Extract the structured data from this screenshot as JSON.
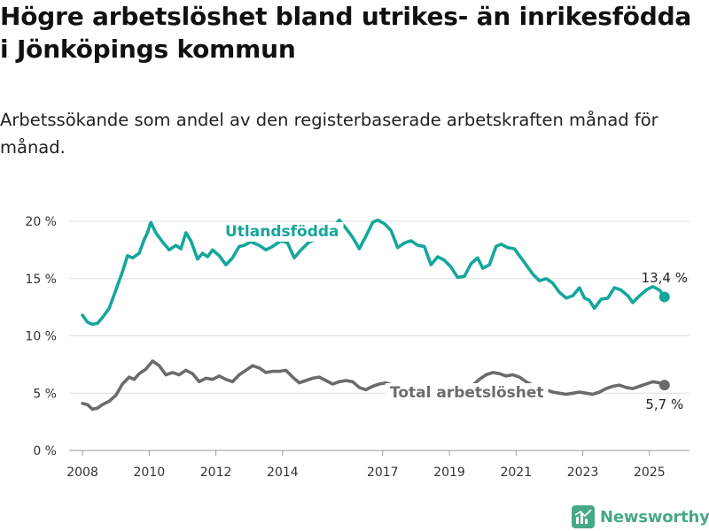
{
  "title": "Högre arbetslöshet bland utrikes- än inrikesfödda i Jönköpings kommun",
  "subtitle": "Arbetssökande som andel av den registerbaserade arbetskraften månad för månad.",
  "brand": {
    "name": "Newsworthy",
    "icon": "newsworthy-logo-icon",
    "color": "#47a889"
  },
  "chart_data": {
    "type": "line",
    "x_unit": "year",
    "xlim": [
      2007.6,
      2026.2
    ],
    "x_ticks": [
      2008,
      2010,
      2012,
      2014,
      2017,
      2019,
      2021,
      2023,
      2025
    ],
    "x_tick_labels": [
      "2008",
      "2010",
      "2012",
      "2014",
      "2017",
      "2019",
      "2021",
      "2023",
      "2025"
    ],
    "ylim": [
      0,
      20
    ],
    "y_ticks": [
      0,
      5,
      10,
      15,
      20
    ],
    "y_tick_labels": [
      "0 %",
      "5 %",
      "10 %",
      "15 %",
      "20 %"
    ],
    "grid": true,
    "series": [
      {
        "name": "Utlandsfödda",
        "color": "#15a69c",
        "end_label": "13,4 %",
        "points": [
          [
            2008.0,
            11.8
          ],
          [
            2008.15,
            11.2
          ],
          [
            2008.3,
            11.0
          ],
          [
            2008.45,
            11.1
          ],
          [
            2008.6,
            11.6
          ],
          [
            2008.8,
            12.4
          ],
          [
            2009.0,
            14.0
          ],
          [
            2009.2,
            15.6
          ],
          [
            2009.35,
            17.0
          ],
          [
            2009.5,
            16.8
          ],
          [
            2009.7,
            17.2
          ],
          [
            2009.85,
            18.4
          ],
          [
            2009.95,
            19.0
          ],
          [
            2010.05,
            19.9
          ],
          [
            2010.2,
            19.0
          ],
          [
            2010.4,
            18.2
          ],
          [
            2010.6,
            17.5
          ],
          [
            2010.8,
            17.9
          ],
          [
            2010.95,
            17.6
          ],
          [
            2011.1,
            19.0
          ],
          [
            2011.25,
            18.3
          ],
          [
            2011.45,
            16.7
          ],
          [
            2011.6,
            17.2
          ],
          [
            2011.75,
            16.9
          ],
          [
            2011.9,
            17.5
          ],
          [
            2012.1,
            17.0
          ],
          [
            2012.3,
            16.2
          ],
          [
            2012.5,
            16.8
          ],
          [
            2012.7,
            17.8
          ],
          [
            2012.85,
            17.9
          ],
          [
            2013.05,
            18.2
          ],
          [
            2013.3,
            17.9
          ],
          [
            2013.5,
            17.5
          ],
          [
            2013.7,
            17.8
          ],
          [
            2013.95,
            18.3
          ],
          [
            2014.15,
            18.1
          ],
          [
            2014.35,
            16.8
          ],
          [
            2014.55,
            17.5
          ],
          [
            2014.8,
            18.2
          ],
          [
            2015.1,
            18.5
          ],
          [
            2015.4,
            19.0
          ],
          [
            2015.7,
            20.1
          ],
          [
            2015.95,
            19.2
          ],
          [
            2016.1,
            18.6
          ],
          [
            2016.3,
            17.6
          ],
          [
            2016.5,
            18.7
          ],
          [
            2016.7,
            19.9
          ],
          [
            2016.85,
            20.1
          ],
          [
            2017.05,
            19.8
          ],
          [
            2017.25,
            19.2
          ],
          [
            2017.45,
            17.7
          ],
          [
            2017.65,
            18.1
          ],
          [
            2017.85,
            18.3
          ],
          [
            2018.05,
            17.9
          ],
          [
            2018.25,
            17.8
          ],
          [
            2018.45,
            16.2
          ],
          [
            2018.65,
            16.9
          ],
          [
            2018.85,
            16.6
          ],
          [
            2019.05,
            16.0
          ],
          [
            2019.25,
            15.1
          ],
          [
            2019.45,
            15.2
          ],
          [
            2019.65,
            16.3
          ],
          [
            2019.85,
            16.8
          ],
          [
            2020.0,
            15.9
          ],
          [
            2020.2,
            16.2
          ],
          [
            2020.4,
            17.8
          ],
          [
            2020.55,
            18.0
          ],
          [
            2020.75,
            17.7
          ],
          [
            2020.95,
            17.6
          ],
          [
            2021.1,
            17.0
          ],
          [
            2021.3,
            16.2
          ],
          [
            2021.5,
            15.4
          ],
          [
            2021.7,
            14.8
          ],
          [
            2021.9,
            15.0
          ],
          [
            2022.1,
            14.6
          ],
          [
            2022.3,
            13.8
          ],
          [
            2022.5,
            13.3
          ],
          [
            2022.7,
            13.5
          ],
          [
            2022.9,
            14.2
          ],
          [
            2023.05,
            13.3
          ],
          [
            2023.2,
            13.1
          ],
          [
            2023.35,
            12.4
          ],
          [
            2023.55,
            13.2
          ],
          [
            2023.75,
            13.3
          ],
          [
            2023.95,
            14.2
          ],
          [
            2024.15,
            14.0
          ],
          [
            2024.35,
            13.5
          ],
          [
            2024.5,
            12.9
          ],
          [
            2024.7,
            13.5
          ],
          [
            2024.9,
            14.0
          ],
          [
            2025.1,
            14.3
          ],
          [
            2025.3,
            14.0
          ],
          [
            2025.45,
            13.4
          ]
        ]
      },
      {
        "name": "Total arbetslöshet",
        "color": "#6b6b6b",
        "end_label": "5,7 %",
        "points": [
          [
            2008.0,
            4.1
          ],
          [
            2008.15,
            4.0
          ],
          [
            2008.3,
            3.6
          ],
          [
            2008.45,
            3.7
          ],
          [
            2008.6,
            4.0
          ],
          [
            2008.8,
            4.3
          ],
          [
            2009.0,
            4.8
          ],
          [
            2009.2,
            5.8
          ],
          [
            2009.4,
            6.4
          ],
          [
            2009.55,
            6.2
          ],
          [
            2009.7,
            6.7
          ],
          [
            2009.9,
            7.1
          ],
          [
            2010.1,
            7.8
          ],
          [
            2010.3,
            7.4
          ],
          [
            2010.5,
            6.6
          ],
          [
            2010.7,
            6.8
          ],
          [
            2010.9,
            6.6
          ],
          [
            2011.1,
            7.0
          ],
          [
            2011.3,
            6.7
          ],
          [
            2011.5,
            6.0
          ],
          [
            2011.7,
            6.3
          ],
          [
            2011.9,
            6.2
          ],
          [
            2012.1,
            6.5
          ],
          [
            2012.3,
            6.2
          ],
          [
            2012.5,
            6.0
          ],
          [
            2012.7,
            6.6
          ],
          [
            2012.9,
            7.0
          ],
          [
            2013.1,
            7.4
          ],
          [
            2013.3,
            7.2
          ],
          [
            2013.5,
            6.8
          ],
          [
            2013.7,
            6.9
          ],
          [
            2013.9,
            6.9
          ],
          [
            2014.1,
            7.0
          ],
          [
            2014.3,
            6.4
          ],
          [
            2014.5,
            5.9
          ],
          [
            2014.7,
            6.1
          ],
          [
            2014.9,
            6.3
          ],
          [
            2015.1,
            6.4
          ],
          [
            2015.3,
            6.1
          ],
          [
            2015.5,
            5.8
          ],
          [
            2015.7,
            6.0
          ],
          [
            2015.9,
            6.1
          ],
          [
            2016.1,
            6.0
          ],
          [
            2016.3,
            5.5
          ],
          [
            2016.5,
            5.3
          ],
          [
            2016.7,
            5.6
          ],
          [
            2016.9,
            5.8
          ],
          [
            2017.1,
            5.9
          ],
          [
            2017.3,
            5.7
          ],
          [
            2017.5,
            5.6
          ],
          [
            2017.7,
            5.7
          ],
          [
            2017.9,
            5.5
          ],
          [
            2018.1,
            5.6
          ],
          [
            2018.3,
            5.4
          ],
          [
            2018.5,
            5.3
          ],
          [
            2018.7,
            5.4
          ],
          [
            2018.9,
            5.5
          ],
          [
            2019.1,
            5.3
          ],
          [
            2019.3,
            5.1
          ],
          [
            2019.5,
            5.2
          ],
          [
            2019.7,
            5.7
          ],
          [
            2019.9,
            6.2
          ],
          [
            2020.1,
            6.6
          ],
          [
            2020.3,
            6.8
          ],
          [
            2020.5,
            6.7
          ],
          [
            2020.7,
            6.5
          ],
          [
            2020.9,
            6.6
          ],
          [
            2021.1,
            6.4
          ],
          [
            2021.3,
            6.0
          ],
          [
            2021.5,
            5.7
          ],
          [
            2021.7,
            5.4
          ],
          [
            2021.9,
            5.3
          ],
          [
            2022.1,
            5.1
          ],
          [
            2022.3,
            5.0
          ],
          [
            2022.5,
            4.9
          ],
          [
            2022.7,
            5.0
          ],
          [
            2022.9,
            5.1
          ],
          [
            2023.1,
            5.0
          ],
          [
            2023.3,
            4.9
          ],
          [
            2023.5,
            5.1
          ],
          [
            2023.7,
            5.4
          ],
          [
            2023.9,
            5.6
          ],
          [
            2024.1,
            5.7
          ],
          [
            2024.3,
            5.5
          ],
          [
            2024.5,
            5.4
          ],
          [
            2024.7,
            5.6
          ],
          [
            2024.9,
            5.8
          ],
          [
            2025.1,
            6.0
          ],
          [
            2025.3,
            5.9
          ],
          [
            2025.45,
            5.7
          ]
        ]
      }
    ]
  }
}
